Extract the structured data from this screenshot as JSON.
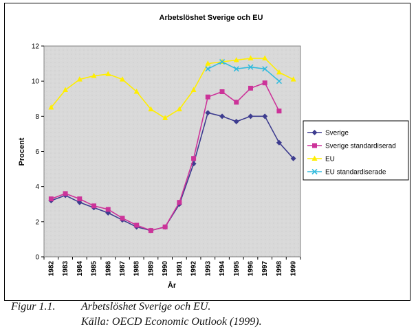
{
  "caption": {
    "figure_label": "Figur 1.1.",
    "figure_title": "Arbetslöshet Sverige och EU.",
    "source": "Källa: OECD Economic Outlook (1999)."
  },
  "chart_data": {
    "type": "line",
    "title": "Arbetslöshet Sverige och EU",
    "xlabel": "År",
    "ylabel": "Procent",
    "ylim": [
      0,
      12
    ],
    "yticks": [
      0,
      2,
      4,
      6,
      8,
      10,
      12
    ],
    "grid": false,
    "legend": "right",
    "categories": [
      "1982",
      "1983",
      "1984",
      "1985",
      "1986",
      "1987",
      "1988",
      "1989",
      "1990",
      "1991",
      "1992",
      "1993",
      "1994",
      "1995",
      "1996",
      "1997",
      "1998",
      "1999"
    ],
    "series": [
      {
        "name": "Sverige",
        "color": "#3d3c8f",
        "marker": "diamond",
        "values": [
          3.2,
          3.5,
          3.1,
          2.8,
          2.5,
          2.1,
          1.7,
          1.5,
          1.7,
          3.0,
          5.3,
          8.2,
          8.0,
          7.7,
          8.0,
          8.0,
          6.5,
          5.6
        ]
      },
      {
        "name": "Sverige standardiserad",
        "color": "#cc3399",
        "marker": "square",
        "values": [
          3.3,
          3.6,
          3.3,
          2.9,
          2.7,
          2.2,
          1.8,
          1.5,
          1.7,
          3.1,
          5.6,
          9.1,
          9.4,
          8.8,
          9.6,
          9.9,
          8.3,
          null
        ]
      },
      {
        "name": "EU",
        "color": "#ffee00",
        "marker": "triangle",
        "values": [
          8.5,
          9.5,
          10.1,
          10.3,
          10.4,
          10.1,
          9.4,
          8.4,
          7.9,
          8.4,
          9.5,
          11.0,
          11.1,
          11.2,
          11.3,
          11.3,
          10.5,
          10.1
        ]
      },
      {
        "name": "EU standardiserade",
        "color": "#33bbdd",
        "marker": "x",
        "values": [
          null,
          null,
          null,
          null,
          null,
          null,
          null,
          null,
          null,
          null,
          null,
          10.7,
          11.1,
          10.7,
          10.8,
          10.7,
          10.0,
          null
        ]
      }
    ]
  }
}
